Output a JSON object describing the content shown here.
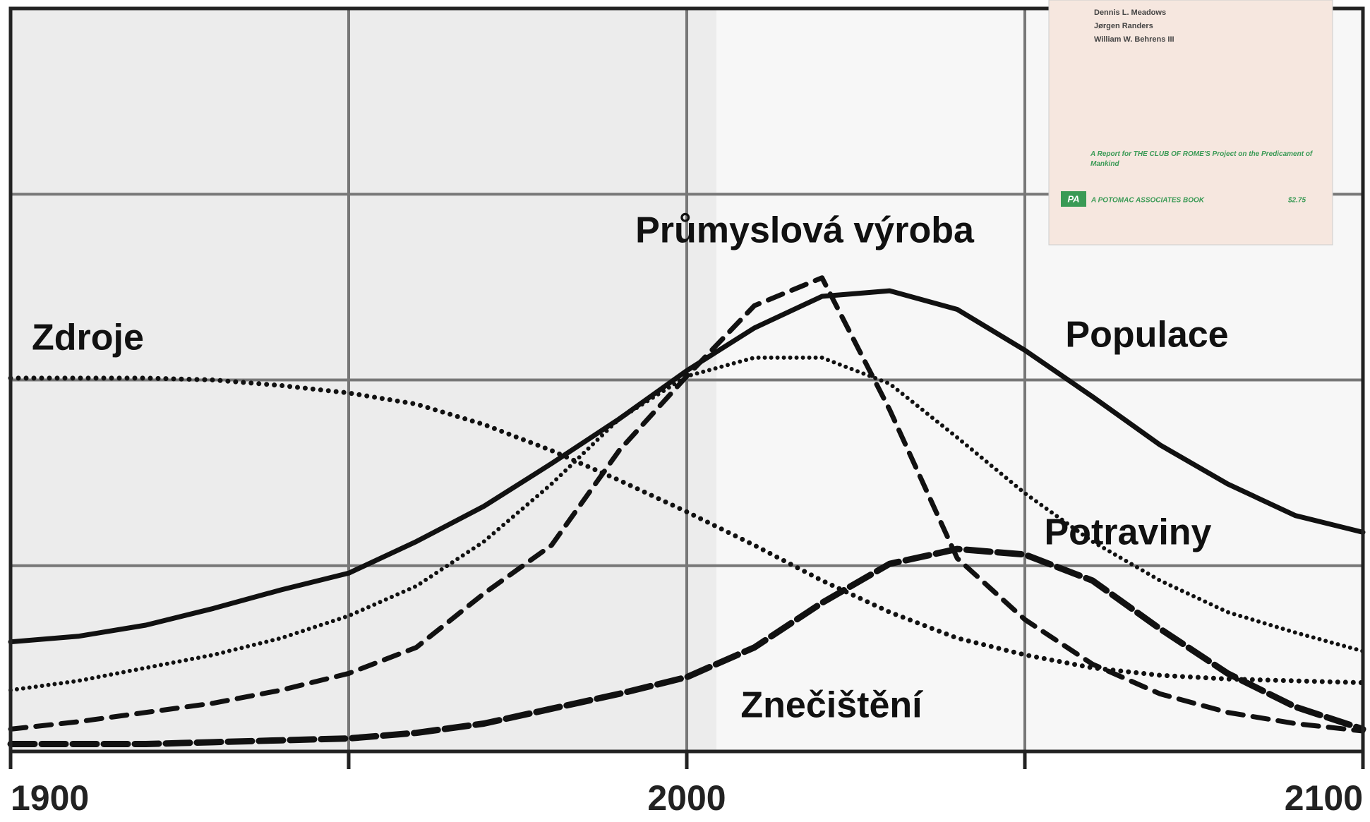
{
  "chart_data": {
    "type": "line",
    "x": [
      1900,
      1910,
      1920,
      1930,
      1940,
      1950,
      1960,
      1970,
      1980,
      1990,
      2000,
      2010,
      2020,
      2030,
      2040,
      2050,
      2060,
      2070,
      2080,
      2090,
      2100
    ],
    "xlim": [
      1900,
      2100
    ],
    "xticks": [
      1900,
      2000,
      2100
    ],
    "xminor": [
      1950,
      2050
    ],
    "ylim": [
      0,
      4
    ],
    "ygrid": [
      1,
      2,
      3
    ],
    "grid": true,
    "series": [
      {
        "name": "Zdroje",
        "color": "#111111",
        "line_style": "dotted",
        "values": [
          2.01,
          2.01,
          2.01,
          2.0,
          1.97,
          1.93,
          1.87,
          1.76,
          1.62,
          1.46,
          1.29,
          1.11,
          0.92,
          0.75,
          0.61,
          0.52,
          0.45,
          0.41,
          0.39,
          0.38,
          0.37
        ]
      },
      {
        "name": "Průmyslová výroba",
        "color": "#111111",
        "line_style": "dashed",
        "values": [
          0.12,
          0.16,
          0.21,
          0.26,
          0.33,
          0.42,
          0.56,
          0.85,
          1.11,
          1.62,
          2.02,
          2.4,
          2.55,
          1.84,
          1.04,
          0.71,
          0.47,
          0.31,
          0.21,
          0.15,
          0.11
        ]
      },
      {
        "name": "Populace",
        "color": "#111111",
        "line_style": "solid",
        "values": [
          0.59,
          0.62,
          0.68,
          0.77,
          0.87,
          0.96,
          1.13,
          1.32,
          1.55,
          1.79,
          2.05,
          2.28,
          2.45,
          2.48,
          2.38,
          2.16,
          1.91,
          1.65,
          1.44,
          1.27,
          1.18
        ]
      },
      {
        "name": "Potraviny",
        "color": "#111111",
        "line_style": "fine-dotted",
        "values": [
          0.33,
          0.38,
          0.45,
          0.52,
          0.61,
          0.73,
          0.89,
          1.13,
          1.44,
          1.79,
          2.02,
          2.12,
          2.12,
          1.98,
          1.69,
          1.39,
          1.13,
          0.92,
          0.75,
          0.64,
          0.54
        ]
      },
      {
        "name": "Znečištění",
        "color": "#111111",
        "line_style": "long-dashed",
        "values": [
          0.04,
          0.04,
          0.04,
          0.05,
          0.06,
          0.07,
          0.1,
          0.15,
          0.23,
          0.31,
          0.4,
          0.56,
          0.8,
          1.01,
          1.09,
          1.06,
          0.92,
          0.66,
          0.42,
          0.24,
          0.12
        ]
      }
    ]
  },
  "inset": {
    "authors": [
      "Dennis L. Meadows",
      "Jørgen Randers",
      "William W. Behrens III"
    ],
    "report": "A Report for THE CLUB OF ROME'S Project on the Predicament of Mankind",
    "logo": "PA",
    "publisher": "A POTOMAC ASSOCIATES BOOK",
    "price": "$2.75"
  }
}
